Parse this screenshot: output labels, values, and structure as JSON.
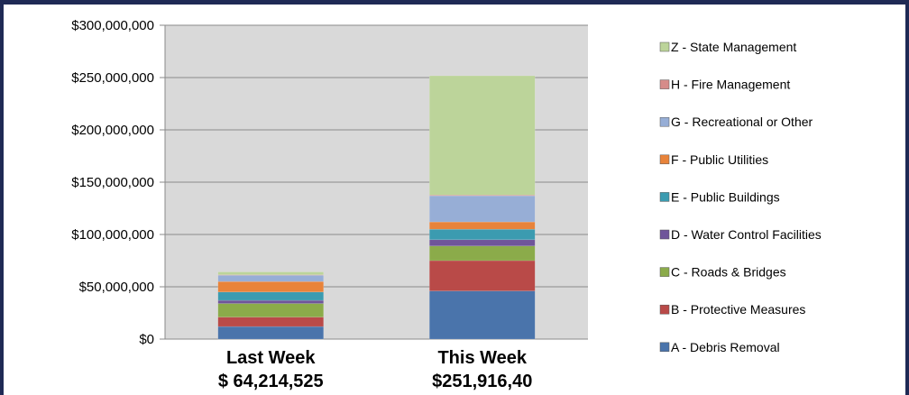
{
  "chart_data": {
    "type": "bar",
    "stacked": true,
    "categories": [
      "Last Week",
      "This Week"
    ],
    "category_totals": [
      "$ 64,214,525",
      "$251,916,40"
    ],
    "series": [
      {
        "name": "A - Debris Removal",
        "color": "#4a74ab",
        "values": [
          12000000,
          46000000
        ]
      },
      {
        "name": "B - Protective Measures",
        "color": "#b94a48",
        "values": [
          9000000,
          29000000
        ]
      },
      {
        "name": "C - Roads & Bridges",
        "color": "#8bab4a",
        "values": [
          13000000,
          14000000
        ]
      },
      {
        "name": "D - Water Control Facilities",
        "color": "#6f559a",
        "values": [
          3000000,
          6000000
        ]
      },
      {
        "name": "E - Public Buildings",
        "color": "#3b9bb0",
        "values": [
          8000000,
          10000000
        ]
      },
      {
        "name": "F - Public Utilities",
        "color": "#e8833a",
        "values": [
          10000000,
          7000000
        ]
      },
      {
        "name": "G - Recreational or Other",
        "color": "#97aed6",
        "values": [
          6000000,
          25000000
        ]
      },
      {
        "name": "H - Fire Management",
        "color": "#d68c8a",
        "values": [
          500000,
          700000
        ]
      },
      {
        "name": "Z - State Management",
        "color": "#bcd49a",
        "values": [
          2700000,
          114000000
        ]
      }
    ],
    "yticks": [
      "$0",
      "$50,000,000",
      "$100,000,000",
      "$150,000,000",
      "$200,000,000",
      "$250,000,000",
      "$300,000,000"
    ],
    "ylim": [
      0,
      300000000
    ],
    "grid": true,
    "legend_position": "right"
  }
}
